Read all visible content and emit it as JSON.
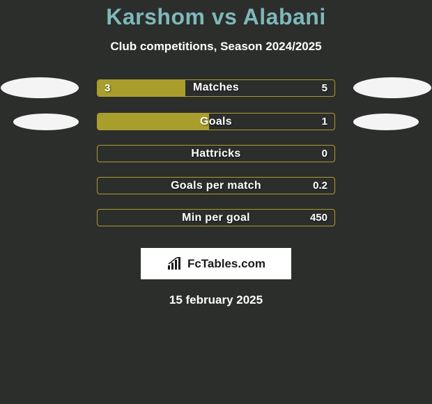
{
  "title": "Karshom vs Alabani",
  "subtitle": "Club competitions, Season 2024/2025",
  "colors": {
    "background": "#2c2e2c",
    "title": "#7fb8ba",
    "bar_border": "#a99e2c",
    "bar_fill": "#a99e2c",
    "text": "#ffffff",
    "ellipse": "#f4f4f4",
    "brand_bg": "#ffffff",
    "brand_text": "#1a1a1a"
  },
  "bars": [
    {
      "label": "Matches",
      "left": "3",
      "right": "5",
      "fill_pct": 37
    },
    {
      "label": "Goals",
      "left": "",
      "right": "1",
      "fill_pct": 47
    },
    {
      "label": "Hattricks",
      "left": "",
      "right": "0",
      "fill_pct": 0
    },
    {
      "label": "Goals per match",
      "left": "",
      "right": "0.2",
      "fill_pct": 0
    },
    {
      "label": "Min per goal",
      "left": "",
      "right": "450",
      "fill_pct": 0
    }
  ],
  "brand": "FcTables.com",
  "date": "15 february 2025"
}
